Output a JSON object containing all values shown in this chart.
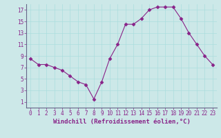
{
  "x": [
    0,
    1,
    2,
    3,
    4,
    5,
    6,
    7,
    8,
    9,
    10,
    11,
    12,
    13,
    14,
    15,
    16,
    17,
    18,
    19,
    20,
    21,
    22,
    23
  ],
  "y": [
    8.5,
    7.5,
    7.5,
    7.0,
    6.5,
    5.5,
    4.5,
    4.0,
    1.5,
    4.5,
    8.5,
    11.0,
    14.5,
    14.5,
    15.5,
    17.0,
    17.5,
    17.5,
    17.5,
    15.5,
    13.0,
    11.0,
    9.0,
    7.5
  ],
  "line_color": "#882288",
  "marker": "D",
  "marker_size": 2.5,
  "bg_color": "#b3e8e8",
  "grid_color": "#d0f0f0",
  "plot_bg": "#cceeff",
  "xlabel": "Windchill (Refroidissement éolien,°C)",
  "ylim": [
    0,
    18
  ],
  "xlim": [
    -0.5,
    23.5
  ],
  "yticks": [
    1,
    3,
    5,
    7,
    9,
    11,
    13,
    15,
    17
  ],
  "xticks": [
    0,
    1,
    2,
    3,
    4,
    5,
    6,
    7,
    8,
    9,
    10,
    11,
    12,
    13,
    14,
    15,
    16,
    17,
    18,
    19,
    20,
    21,
    22,
    23
  ],
  "tick_color": "#882288",
  "label_color": "#882288",
  "label_fontsize": 6.5,
  "tick_fontsize": 5.5
}
